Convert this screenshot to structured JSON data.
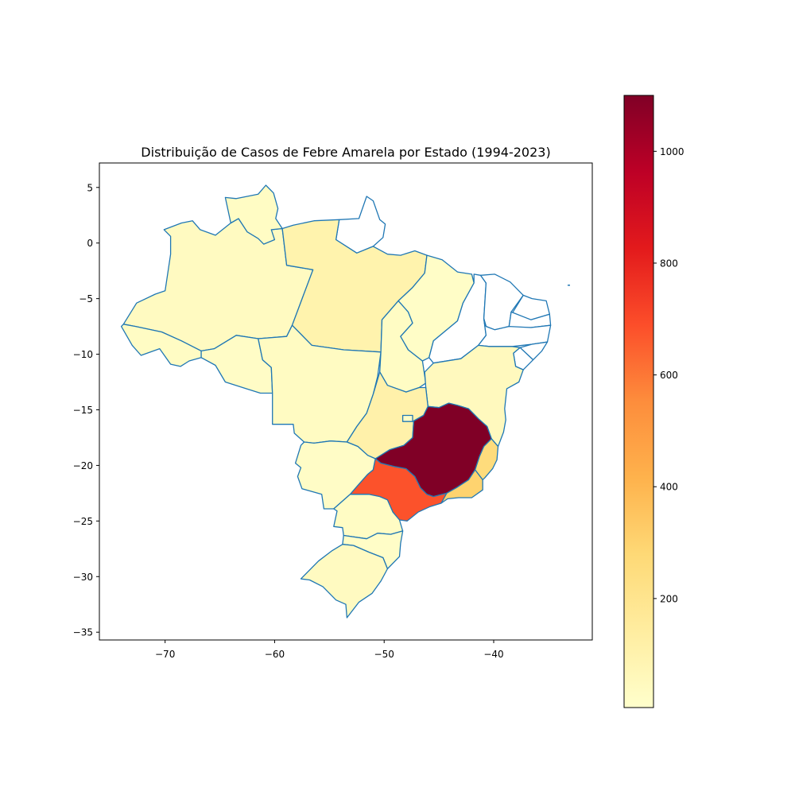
{
  "title": "Distribuição de Casos de Febre Amarela por Estado (1994-2023)",
  "chart_data": {
    "type": "choropleth",
    "title": "Distribuição de Casos de Febre Amarela por Estado (1994-2023)",
    "xlabel": "",
    "ylabel": "",
    "xlim": [
      -76,
      -31
    ],
    "ylim": [
      -35.7,
      7.2
    ],
    "x_ticks": [
      -70,
      -60,
      -50,
      -40
    ],
    "y_ticks": [
      5,
      0,
      -5,
      -10,
      -15,
      -20,
      -25,
      -30,
      -35
    ],
    "x_tick_labels": [
      "−70",
      "−60",
      "−50",
      "−40"
    ],
    "y_tick_labels": [
      "5",
      "0",
      "−5",
      "−10",
      "−15",
      "−20",
      "−25",
      "−30",
      "−35"
    ],
    "grid": false,
    "colormap": "YlOrRd",
    "colorbar": {
      "range": [
        5,
        1100
      ],
      "ticks": [
        200,
        400,
        600,
        800,
        1000
      ],
      "tick_labels": [
        "200",
        "400",
        "600",
        "800",
        "1000"
      ]
    },
    "states": [
      {
        "name": "Amazonas",
        "value": 40
      },
      {
        "name": "Roraima",
        "value": 30
      },
      {
        "name": "Amapá",
        "value": null
      },
      {
        "name": "Pará",
        "value": 100
      },
      {
        "name": "Acre",
        "value": 30
      },
      {
        "name": "Rondônia",
        "value": 25
      },
      {
        "name": "Mato Grosso",
        "value": 35
      },
      {
        "name": "Tocantins",
        "value": 30
      },
      {
        "name": "Maranhão",
        "value": 20
      },
      {
        "name": "Piauí",
        "value": null
      },
      {
        "name": "Ceará",
        "value": null
      },
      {
        "name": "Rio Grande do Norte",
        "value": null
      },
      {
        "name": "Paraíba",
        "value": null
      },
      {
        "name": "Pernambuco",
        "value": null
      },
      {
        "name": "Alagoas",
        "value": null
      },
      {
        "name": "Sergipe",
        "value": null
      },
      {
        "name": "Bahia",
        "value": 50
      },
      {
        "name": "Goiás",
        "value": 110
      },
      {
        "name": "Mato Grosso do Sul",
        "value": 25
      },
      {
        "name": "Minas Gerais",
        "value": 1100
      },
      {
        "name": "Espírito Santo",
        "value": 260
      },
      {
        "name": "Rio de Janeiro",
        "value": 300
      },
      {
        "name": "São Paulo",
        "value": 680
      },
      {
        "name": "Paraná",
        "value": 30
      },
      {
        "name": "Santa Catarina",
        "value": 20
      },
      {
        "name": "Rio Grande do Sul",
        "value": 40
      },
      {
        "name": "Distrito Federal",
        "value": 20
      }
    ]
  }
}
